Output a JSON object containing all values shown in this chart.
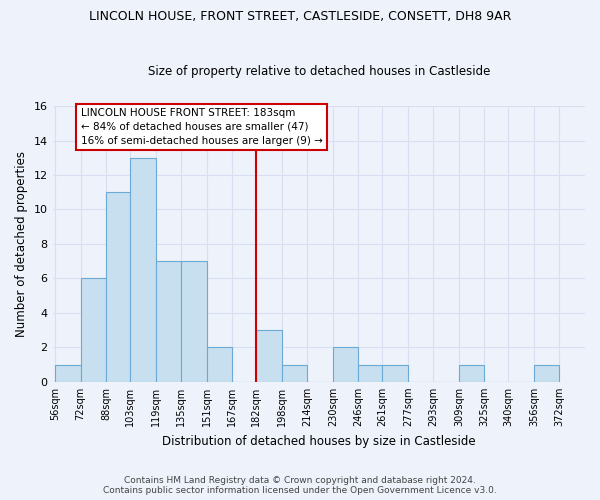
{
  "title": "LINCOLN HOUSE, FRONT STREET, CASTLESIDE, CONSETT, DH8 9AR",
  "subtitle": "Size of property relative to detached houses in Castleside",
  "xlabel": "Distribution of detached houses by size in Castleside",
  "ylabel": "Number of detached properties",
  "bin_edges": [
    56,
    72,
    88,
    103,
    119,
    135,
    151,
    167,
    182,
    198,
    214,
    230,
    246,
    261,
    277,
    293,
    309,
    325,
    340,
    356,
    372
  ],
  "bin_counts": [
    1,
    6,
    11,
    13,
    7,
    7,
    2,
    0,
    3,
    1,
    0,
    2,
    1,
    1,
    0,
    0,
    1,
    0,
    0,
    1
  ],
  "tick_labels": [
    "56sqm",
    "72sqm",
    "88sqm",
    "103sqm",
    "119sqm",
    "135sqm",
    "151sqm",
    "167sqm",
    "182sqm",
    "198sqm",
    "214sqm",
    "230sqm",
    "246sqm",
    "261sqm",
    "277sqm",
    "293sqm",
    "309sqm",
    "325sqm",
    "340sqm",
    "356sqm",
    "372sqm"
  ],
  "bar_color": "#c8dff0",
  "bar_edge_color": "#6aaad4",
  "property_line_x": 182,
  "property_line_color": "#cc0000",
  "annotation_line1": "LINCOLN HOUSE FRONT STREET: 183sqm",
  "annotation_line2": "← 84% of detached houses are smaller (47)",
  "annotation_line3": "16% of semi-detached houses are larger (9) →",
  "ylim": [
    0,
    16
  ],
  "yticks": [
    0,
    2,
    4,
    6,
    8,
    10,
    12,
    14,
    16
  ],
  "footer_line1": "Contains HM Land Registry data © Crown copyright and database right 2024.",
  "footer_line2": "Contains public sector information licensed under the Open Government Licence v3.0.",
  "background_color": "#eef2fb",
  "grid_color": "#d8dff0",
  "title_fontsize": 9,
  "subtitle_fontsize": 8.5,
  "axis_label_fontsize": 8.5,
  "tick_fontsize": 7,
  "annotation_fontsize": 7.5,
  "footer_fontsize": 6.5
}
